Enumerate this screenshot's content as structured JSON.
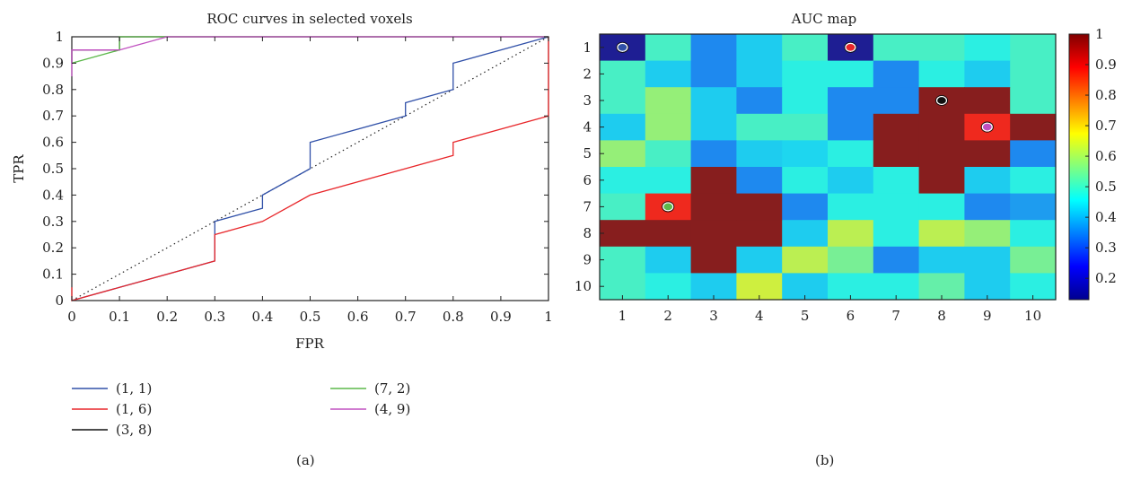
{
  "panel_a_label": "(a)",
  "panel_b_label": "(b)",
  "chart_data": [
    {
      "type": "line",
      "title": "ROC curves in selected voxels",
      "xlabel": "FPR",
      "ylabel": "TPR",
      "xlim": [
        0,
        1
      ],
      "ylim": [
        0,
        1
      ],
      "xticks": [
        "0",
        "0.1",
        "0.2",
        "0.3",
        "0.4",
        "0.5",
        "0.6",
        "0.7",
        "0.8",
        "0.9",
        "1"
      ],
      "yticks": [
        "0",
        "0.1",
        "0.2",
        "0.3",
        "0.4",
        "0.5",
        "0.6",
        "0.7",
        "0.8",
        "0.9",
        "1"
      ],
      "grid": false,
      "legend_position": "bottom",
      "diagonal_reference": true,
      "series": [
        {
          "name": "(1, 1)",
          "color": "#3050a8",
          "x": [
            0,
            0.1,
            0.2,
            0.3,
            0.3,
            0.4,
            0.4,
            0.5,
            0.5,
            0.7,
            0.7,
            0.8,
            0.8,
            1.0
          ],
          "y": [
            0,
            0.05,
            0.1,
            0.15,
            0.3,
            0.35,
            0.4,
            0.5,
            0.6,
            0.7,
            0.75,
            0.8,
            0.9,
            1.0
          ]
        },
        {
          "name": "(1, 6)",
          "color": "#e8262a",
          "x": [
            0,
            0,
            0.2,
            0.3,
            0.3,
            0.4,
            0.5,
            0.8,
            0.8,
            1.0,
            1.0
          ],
          "y": [
            0.05,
            0,
            0.1,
            0.15,
            0.25,
            0.3,
            0.4,
            0.55,
            0.6,
            0.7,
            1.0
          ]
        },
        {
          "name": "(3, 8)",
          "color": "#111111",
          "x": [
            0,
            0,
            0.1,
            0.1,
            0.2,
            1.0
          ],
          "y": [
            0.9,
            0.95,
            0.95,
            1.0,
            1.0,
            1.0
          ]
        },
        {
          "name": "(7, 2)",
          "color": "#5cb84a",
          "x": [
            0,
            0.1,
            0.1,
            0.2,
            1.0
          ],
          "y": [
            0.9,
            0.95,
            1.0,
            1.0,
            1.0
          ]
        },
        {
          "name": "(4, 9)",
          "color": "#c050c0",
          "x": [
            0,
            0,
            0.1,
            0.2,
            1.0
          ],
          "y": [
            0.85,
            0.95,
            0.95,
            1.0,
            1.0
          ]
        }
      ]
    },
    {
      "type": "heatmap",
      "title": "AUC map",
      "xlabel": "",
      "ylabel": "",
      "x_categories": [
        "1",
        "2",
        "3",
        "4",
        "5",
        "6",
        "7",
        "8",
        "9",
        "10"
      ],
      "y_categories": [
        "1",
        "2",
        "3",
        "4",
        "5",
        "6",
        "7",
        "8",
        "9",
        "10"
      ],
      "colorbar_range": [
        0.13,
        1.0
      ],
      "colorbar_ticks": [
        "0.2",
        "0.3",
        "0.4",
        "0.5",
        "0.6",
        "0.7",
        "0.8",
        "0.9",
        "1"
      ],
      "colormap": "jet",
      "values": [
        [
          0.13,
          0.5,
          0.35,
          0.42,
          0.5,
          0.13,
          0.5,
          0.5,
          0.47,
          0.5
        ],
        [
          0.5,
          0.42,
          0.35,
          0.42,
          0.47,
          0.47,
          0.35,
          0.47,
          0.42,
          0.5
        ],
        [
          0.5,
          0.58,
          0.42,
          0.35,
          0.47,
          0.35,
          0.35,
          1.0,
          1.0,
          0.5
        ],
        [
          0.42,
          0.58,
          0.42,
          0.5,
          0.5,
          0.35,
          1.0,
          1.0,
          0.88,
          1.0
        ],
        [
          0.58,
          0.5,
          0.35,
          0.42,
          0.43,
          0.47,
          1.0,
          1.0,
          1.0,
          0.35
        ],
        [
          0.47,
          0.47,
          1.0,
          0.35,
          0.47,
          0.42,
          0.47,
          1.0,
          0.42,
          0.47
        ],
        [
          0.5,
          0.88,
          1.0,
          1.0,
          0.35,
          0.47,
          0.47,
          0.47,
          0.35,
          0.37
        ],
        [
          1.0,
          1.0,
          1.0,
          1.0,
          0.42,
          0.62,
          0.47,
          0.62,
          0.58,
          0.47
        ],
        [
          0.5,
          0.42,
          1.0,
          0.42,
          0.62,
          0.55,
          0.35,
          0.42,
          0.42,
          0.55
        ],
        [
          0.5,
          0.47,
          0.42,
          0.64,
          0.42,
          0.47,
          0.47,
          0.53,
          0.42,
          0.47
        ]
      ],
      "markers": [
        {
          "col": 1,
          "row": 1,
          "fill": "#3050a8"
        },
        {
          "col": 6,
          "row": 1,
          "fill": "#e8262a"
        },
        {
          "col": 8,
          "row": 3,
          "fill": "#111111"
        },
        {
          "col": 9,
          "row": 4,
          "fill": "#c050c0"
        },
        {
          "col": 2,
          "row": 7,
          "fill": "#5cb84a"
        }
      ]
    }
  ]
}
